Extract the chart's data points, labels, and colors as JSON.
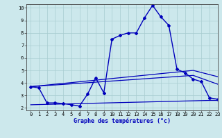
{
  "xlabel": "Graphe des températures (°c)",
  "background_color": "#cce8ec",
  "line_color": "#0000bb",
  "xlim": [
    -0.5,
    23
  ],
  "ylim": [
    1.8,
    10.3
  ],
  "yticks": [
    2,
    3,
    4,
    5,
    6,
    7,
    8,
    9,
    10
  ],
  "xticks": [
    0,
    1,
    2,
    3,
    4,
    5,
    6,
    7,
    8,
    9,
    10,
    11,
    12,
    13,
    14,
    15,
    16,
    17,
    18,
    19,
    20,
    21,
    22,
    23
  ],
  "line1_x": [
    0,
    1,
    2,
    3,
    4,
    5,
    6,
    7,
    8,
    9,
    10,
    11,
    12,
    13,
    14,
    15,
    16,
    17,
    18,
    19,
    20,
    21,
    22,
    23
  ],
  "line1_y": [
    3.7,
    3.6,
    2.4,
    2.4,
    2.35,
    2.25,
    2.15,
    3.1,
    4.4,
    3.2,
    7.5,
    7.8,
    8.0,
    8.0,
    9.2,
    10.2,
    9.3,
    8.6,
    5.1,
    4.8,
    4.3,
    4.1,
    2.8,
    2.7
  ],
  "line2_x": [
    0,
    20,
    23
  ],
  "line2_y": [
    3.7,
    5.0,
    4.5
  ],
  "line3_x": [
    0,
    20,
    23
  ],
  "line3_y": [
    3.7,
    4.6,
    3.9
  ],
  "line4_x": [
    0,
    22,
    23
  ],
  "line4_y": [
    2.25,
    2.6,
    2.6
  ]
}
